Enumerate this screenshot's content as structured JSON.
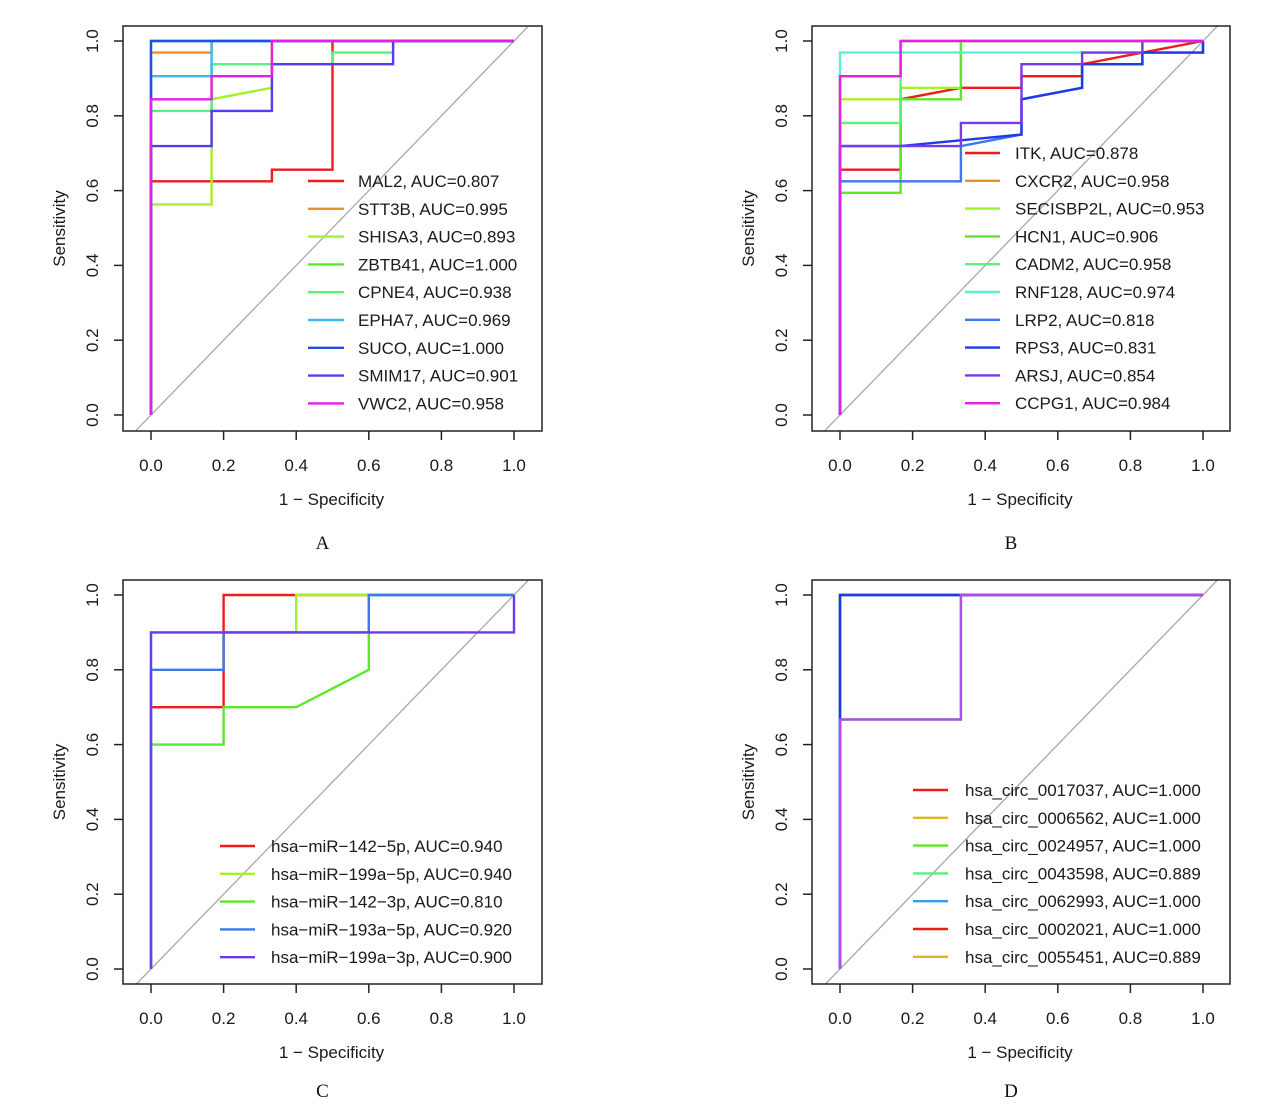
{
  "chart_data": [
    {
      "type": "line",
      "panel_label": "A",
      "xlabel": "1 − Specificity",
      "ylabel": "Sensitivity",
      "xlim": [
        0,
        1
      ],
      "ylim": [
        0,
        1
      ],
      "x_ticks": [
        "0.0",
        "0.2",
        "0.4",
        "0.6",
        "0.8",
        "1.0"
      ],
      "y_ticks": [
        "0.0",
        "0.2",
        "0.4",
        "0.6",
        "0.8",
        "1.0"
      ],
      "reference_line": "diagonal",
      "legend_position": "bottom-right",
      "series": [
        {
          "name": "MAL2, AUC=0.807",
          "color": "#ee1c1c",
          "points": [
            [
              0,
              0
            ],
            [
              0,
              0.625
            ],
            [
              0.333,
              0.625
            ],
            [
              0.333,
              0.656
            ],
            [
              0.5,
              0.656
            ],
            [
              0.5,
              0.938
            ],
            [
              0.5,
              1
            ],
            [
              1,
              1
            ]
          ]
        },
        {
          "name": "STT3B, AUC=0.995",
          "color": "#e8902a",
          "points": [
            [
              0,
              0
            ],
            [
              0,
              0.969
            ],
            [
              0.167,
              0.969
            ],
            [
              0.167,
              1
            ],
            [
              1,
              1
            ]
          ]
        },
        {
          "name": "SHISA3, AUC=0.893",
          "color": "#a6f02a",
          "points": [
            [
              0,
              0
            ],
            [
              0,
              0.563
            ],
            [
              0.167,
              0.563
            ],
            [
              0.167,
              0.844
            ],
            [
              0.333,
              0.875
            ],
            [
              0.333,
              1
            ],
            [
              1,
              1
            ]
          ]
        },
        {
          "name": "ZBTB41, AUC=1.000",
          "color": "#5ae82a",
          "points": [
            [
              0,
              0
            ],
            [
              0,
              1
            ],
            [
              1,
              1
            ]
          ]
        },
        {
          "name": "CPNE4, AUC=0.938",
          "color": "#5af07a",
          "points": [
            [
              0,
              0
            ],
            [
              0,
              0.813
            ],
            [
              0.167,
              0.813
            ],
            [
              0.167,
              0.938
            ],
            [
              0.5,
              0.938
            ],
            [
              0.5,
              0.969
            ],
            [
              0.667,
              0.969
            ],
            [
              0.667,
              1
            ],
            [
              1,
              1
            ]
          ]
        },
        {
          "name": "EPHA7, AUC=0.969",
          "color": "#3ab8f0",
          "points": [
            [
              0,
              0
            ],
            [
              0,
              0.906
            ],
            [
              0.167,
              0.906
            ],
            [
              0.167,
              1
            ],
            [
              1,
              1
            ]
          ]
        },
        {
          "name": "SUCO, AUC=1.000",
          "color": "#1e50e8",
          "points": [
            [
              0,
              0
            ],
            [
              0,
              1
            ],
            [
              1,
              1
            ]
          ]
        },
        {
          "name": "SMIM17, AUC=0.901",
          "color": "#5a3af0",
          "points": [
            [
              0,
              0
            ],
            [
              0,
              0.719
            ],
            [
              0.167,
              0.719
            ],
            [
              0.167,
              0.813
            ],
            [
              0.333,
              0.813
            ],
            [
              0.333,
              0.938
            ],
            [
              0.667,
              0.938
            ],
            [
              0.667,
              1
            ],
            [
              1,
              1
            ]
          ]
        },
        {
          "name": "VWC2, AUC=0.958",
          "color": "#e81ee8",
          "points": [
            [
              0,
              0
            ],
            [
              0,
              0.844
            ],
            [
              0.167,
              0.844
            ],
            [
              0.167,
              0.906
            ],
            [
              0.333,
              0.906
            ],
            [
              0.333,
              1
            ],
            [
              1,
              1
            ]
          ]
        }
      ]
    },
    {
      "type": "line",
      "panel_label": "B",
      "xlabel": "1 − Specificity",
      "ylabel": "Sensitivity",
      "xlim": [
        0,
        1
      ],
      "ylim": [
        0,
        1
      ],
      "x_ticks": [
        "0.0",
        "0.2",
        "0.4",
        "0.6",
        "0.8",
        "1.0"
      ],
      "y_ticks": [
        "0.0",
        "0.2",
        "0.4",
        "0.6",
        "0.8",
        "1.0"
      ],
      "reference_line": "diagonal",
      "legend_position": "bottom-right",
      "series": [
        {
          "name": "ITK, AUC=0.878",
          "color": "#ee1c1c",
          "points": [
            [
              0,
              0
            ],
            [
              0,
              0.656
            ],
            [
              0.167,
              0.656
            ],
            [
              0.167,
              0.844
            ],
            [
              0.333,
              0.875
            ],
            [
              0.5,
              0.875
            ],
            [
              0.5,
              0.906
            ],
            [
              0.667,
              0.906
            ],
            [
              0.667,
              0.938
            ],
            [
              0.833,
              0.969
            ],
            [
              1,
              1
            ]
          ]
        },
        {
          "name": "CXCR2, AUC=0.958",
          "color": "#e8902a",
          "points": [
            [
              0,
              0
            ],
            [
              0,
              0.906
            ],
            [
              0.167,
              0.906
            ],
            [
              0.167,
              1
            ],
            [
              1,
              1
            ]
          ]
        },
        {
          "name": "SECISBP2L, AUC=0.953",
          "color": "#a6f02a",
          "points": [
            [
              0,
              0
            ],
            [
              0,
              0.844
            ],
            [
              0.167,
              0.844
            ],
            [
              0.167,
              0.875
            ],
            [
              0.333,
              0.875
            ],
            [
              0.333,
              1
            ],
            [
              1,
              1
            ]
          ]
        },
        {
          "name": "HCN1, AUC=0.906",
          "color": "#5ae82a",
          "points": [
            [
              0,
              0
            ],
            [
              0,
              0.594
            ],
            [
              0.167,
              0.594
            ],
            [
              0.167,
              0.844
            ],
            [
              0.333,
              0.844
            ],
            [
              0.333,
              1
            ],
            [
              1,
              1
            ]
          ]
        },
        {
          "name": "CADM2, AUC=0.958",
          "color": "#5af07a",
          "points": [
            [
              0,
              0
            ],
            [
              0,
              0.781
            ],
            [
              0.167,
              0.781
            ],
            [
              0.167,
              1
            ],
            [
              1,
              1
            ]
          ]
        },
        {
          "name": "RNF128, AUC=0.974",
          "color": "#5af0d2",
          "points": [
            [
              0,
              0
            ],
            [
              0,
              0.969
            ],
            [
              0.833,
              0.969
            ],
            [
              0.833,
              1
            ],
            [
              1,
              1
            ]
          ]
        },
        {
          "name": "LRP2, AUC=0.818",
          "color": "#3a78f0",
          "points": [
            [
              0,
              0
            ],
            [
              0,
              0.625
            ],
            [
              0.333,
              0.625
            ],
            [
              0.333,
              0.719
            ],
            [
              0.5,
              0.75
            ],
            [
              0.5,
              0.844
            ],
            [
              0.667,
              0.875
            ],
            [
              0.667,
              0.938
            ],
            [
              0.833,
              0.938
            ],
            [
              0.833,
              0.969
            ],
            [
              1,
              0.969
            ],
            [
              1,
              1
            ]
          ]
        },
        {
          "name": "RPS3, AUC=0.831",
          "color": "#1e3ae8",
          "points": [
            [
              0,
              0
            ],
            [
              0,
              0.719
            ],
            [
              0.167,
              0.719
            ],
            [
              0.5,
              0.75
            ],
            [
              0.5,
              0.844
            ],
            [
              0.667,
              0.875
            ],
            [
              0.667,
              0.938
            ],
            [
              0.833,
              0.938
            ],
            [
              0.833,
              0.969
            ],
            [
              1,
              0.969
            ],
            [
              1,
              1
            ]
          ]
        },
        {
          "name": "ARSJ, AUC=0.854",
          "color": "#7a3ae8",
          "points": [
            [
              0,
              0
            ],
            [
              0,
              0.719
            ],
            [
              0.333,
              0.719
            ],
            [
              0.333,
              0.781
            ],
            [
              0.5,
              0.781
            ],
            [
              0.5,
              0.938
            ],
            [
              0.667,
              0.938
            ],
            [
              0.667,
              0.969
            ],
            [
              0.833,
              0.969
            ],
            [
              0.833,
              1
            ],
            [
              1,
              1
            ]
          ]
        },
        {
          "name": "CCPG1, AUC=0.984",
          "color": "#e81ee8",
          "points": [
            [
              0,
              0
            ],
            [
              0,
              0.906
            ],
            [
              0.167,
              0.906
            ],
            [
              0.167,
              1
            ],
            [
              1,
              1
            ]
          ]
        }
      ]
    },
    {
      "type": "line",
      "panel_label": "C",
      "xlabel": "1 − Specificity",
      "ylabel": "Sensitivity",
      "xlim": [
        0,
        1
      ],
      "ylim": [
        0,
        1
      ],
      "x_ticks": [
        "0.0",
        "0.2",
        "0.4",
        "0.6",
        "0.8",
        "1.0"
      ],
      "y_ticks": [
        "0.0",
        "0.2",
        "0.4",
        "0.6",
        "0.8",
        "1.0"
      ],
      "reference_line": "diagonal",
      "legend_position": "bottom-right",
      "series": [
        {
          "name": "hsa−miR−142−5p, AUC=0.940",
          "color": "#ee1c1c",
          "points": [
            [
              0,
              0
            ],
            [
              0,
              0.7
            ],
            [
              0.2,
              0.7
            ],
            [
              0.2,
              1
            ],
            [
              1,
              1
            ]
          ]
        },
        {
          "name": "hsa−miR−199a−5p, AUC=0.940",
          "color": "#a6f02a",
          "points": [
            [
              0,
              0
            ],
            [
              0,
              0.9
            ],
            [
              0.4,
              0.9
            ],
            [
              0.4,
              1
            ],
            [
              1,
              1
            ]
          ]
        },
        {
          "name": "hsa−miR−142−3p, AUC=0.810",
          "color": "#5ae82a",
          "points": [
            [
              0,
              0
            ],
            [
              0,
              0.6
            ],
            [
              0.2,
              0.6
            ],
            [
              0.2,
              0.7
            ],
            [
              0.4,
              0.7
            ],
            [
              0.6,
              0.8
            ],
            [
              0.6,
              0.9
            ],
            [
              0.6,
              1
            ],
            [
              1,
              1
            ]
          ]
        },
        {
          "name": "hsa−miR−193a−5p, AUC=0.920",
          "color": "#3a78f0",
          "points": [
            [
              0,
              0
            ],
            [
              0,
              0.8
            ],
            [
              0.2,
              0.8
            ],
            [
              0.2,
              0.9
            ],
            [
              0.6,
              0.9
            ],
            [
              0.6,
              1
            ],
            [
              1,
              1
            ]
          ]
        },
        {
          "name": "hsa−miR−199a−3p, AUC=0.900",
          "color": "#6a3af0",
          "points": [
            [
              0,
              0
            ],
            [
              0,
              0.9
            ],
            [
              1,
              0.9
            ],
            [
              1,
              1
            ]
          ]
        }
      ]
    },
    {
      "type": "line",
      "panel_label": "D",
      "xlabel": "1 − Specificity",
      "ylabel": "Sensitivity",
      "xlim": [
        0,
        1
      ],
      "ylim": [
        0,
        1
      ],
      "x_ticks": [
        "0.0",
        "0.2",
        "0.4",
        "0.6",
        "0.8",
        "1.0"
      ],
      "y_ticks": [
        "0.0",
        "0.2",
        "0.4",
        "0.6",
        "0.8",
        "1.0"
      ],
      "reference_line": "diagonal",
      "legend_position": "bottom-right",
      "series": [
        {
          "name": "hsa_circ_0017037, AUC=1.000",
          "color": "#ee1c1c",
          "points": [
            [
              0,
              0
            ],
            [
              0,
              1
            ],
            [
              1,
              1
            ]
          ]
        },
        {
          "name": "hsa_circ_0006562, AUC=1.000",
          "color": "#e0b81e",
          "points": [
            [
              0,
              0
            ],
            [
              0,
              1
            ],
            [
              1,
              1
            ]
          ]
        },
        {
          "name": "hsa_circ_0024957, AUC=1.000",
          "color": "#5ae82a",
          "points": [
            [
              0,
              0
            ],
            [
              0,
              1
            ],
            [
              1,
              1
            ]
          ]
        },
        {
          "name": "hsa_circ_0043598, AUC=0.889",
          "color": "#5af07a",
          "points": [
            [
              0,
              0
            ],
            [
              0,
              0.667
            ],
            [
              0.333,
              0.667
            ],
            [
              0.333,
              1
            ],
            [
              1,
              1
            ]
          ]
        },
        {
          "name": "hsa_circ_0062993, AUC=1.000",
          "color": "#3a9af0",
          "points": [
            [
              0,
              0
            ],
            [
              0,
              1
            ],
            [
              1,
              1
            ]
          ]
        },
        {
          "name": "hsa_circ_0002021, AUC=1.000",
          "color": "#1e3ae8",
          "points": [
            [
              0,
              0
            ],
            [
              0,
              1
            ],
            [
              1,
              1
            ]
          ]
        },
        {
          "name": "hsa_circ_0055451, AUC=0.889",
          "color": "#b04af0",
          "points": [
            [
              0,
              0
            ],
            [
              0,
              0.667
            ],
            [
              0.333,
              0.667
            ],
            [
              0.333,
              1
            ],
            [
              1,
              1
            ]
          ]
        }
      ],
      "legend_colors": [
        "#ee1c1c",
        "#e0b81e",
        "#5ae82a",
        "#5af07a",
        "#3a9af0",
        "#ee1c1c",
        "#e0b81e"
      ]
    }
  ]
}
